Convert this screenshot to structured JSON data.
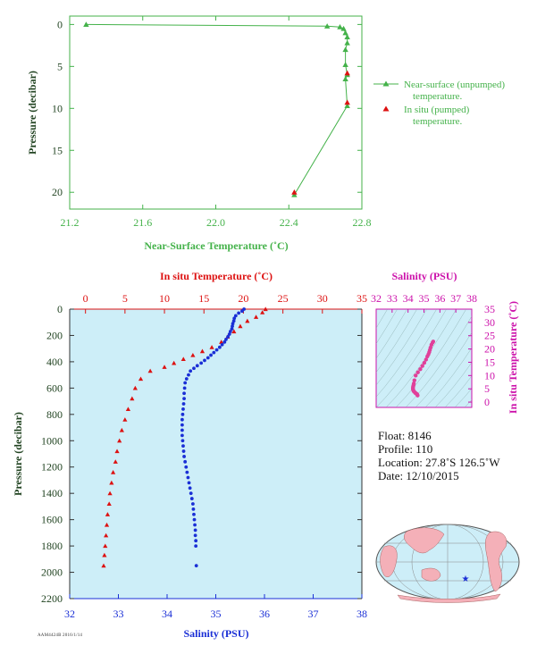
{
  "colors": {
    "green": "#44b24a",
    "red": "#dd1111",
    "blue": "#1a2fd6",
    "magenta": "#cc11aa",
    "dark": "#224422",
    "panel_bg": "#cdeef8",
    "axis": "#333333"
  },
  "top_chart": {
    "xlabel": "Near-Surface Temperature (˚C)",
    "ylabel": "Pressure (decibar)",
    "xlim": [
      21.2,
      22.8
    ],
    "ylim": [
      22,
      -1
    ],
    "xticks": [
      "21.2",
      "21.6",
      "22.0",
      "22.4",
      "22.8"
    ],
    "yticks": [
      "0",
      "5",
      "10",
      "15",
      "20"
    ],
    "legend": {
      "near_surface_line1": "Near-surface (unpumped)",
      "near_surface_line2": "temperature.",
      "in_situ_line1": "In situ (pumped)",
      "in_situ_line2": "temperature."
    }
  },
  "profile_chart": {
    "top_axis_label": "In situ Temperature (˚C)",
    "bottom_axis_label": "Salinity (PSU)",
    "ylabel": "Pressure (decibar)",
    "temp_xlim": [
      -2,
      35
    ],
    "sal_xlim": [
      32,
      38
    ],
    "ylim": [
      2200,
      0
    ],
    "temp_ticks": [
      "0",
      "5",
      "10",
      "15",
      "20",
      "25",
      "30",
      "35"
    ],
    "sal_ticks": [
      "32",
      "33",
      "34",
      "35",
      "36",
      "37",
      "38"
    ],
    "pressure_ticks": [
      "0",
      "200",
      "400",
      "600",
      "800",
      "1000",
      "1200",
      "1400",
      "1600",
      "1800",
      "2000",
      "2200"
    ]
  },
  "ts_chart": {
    "title": "Salinity (PSU)",
    "ylabel": "In situ Temperature (˚C)",
    "xlim": [
      32,
      38
    ],
    "ylim": [
      -2,
      35
    ],
    "xticks": [
      "32",
      "33",
      "34",
      "35",
      "36",
      "37",
      "38"
    ],
    "yticks": [
      "0",
      "5",
      "10",
      "15",
      "20",
      "25",
      "30",
      "35"
    ]
  },
  "info": {
    "float": "Float:  8146",
    "profile": "Profile:  110",
    "location": "Location:  27.8˚S  126.5˚W",
    "date": "Date:  12/10/2015"
  },
  "stamp": "AAM4424B 2016/1/14",
  "chart_data": [
    {
      "type": "scatter",
      "title": "",
      "xlabel": "Near-Surface Temperature (˚C)",
      "ylabel": "Pressure (decibar)",
      "xlim": [
        21.2,
        22.8
      ],
      "ylim": [
        22,
        -1
      ],
      "series": [
        {
          "name": "Near-surface (unpumped) temperature.",
          "x": [
            21.29,
            22.61,
            22.68,
            22.7,
            22.71,
            22.72,
            22.72,
            22.71,
            22.71,
            22.72,
            22.71,
            22.72,
            22.43
          ],
          "y": [
            0.0,
            0.2,
            0.3,
            0.5,
            1.0,
            1.5,
            2.2,
            3.0,
            4.8,
            6.0,
            6.5,
            9.7,
            20.3
          ]
        },
        {
          "name": "In situ (pumped) temperature.",
          "x": [
            22.72,
            22.72,
            22.43
          ],
          "y": [
            5.8,
            9.3,
            20.0
          ]
        }
      ]
    },
    {
      "type": "scatter",
      "title": "",
      "ylabel": "Pressure (decibar)",
      "series": [
        {
          "name": "In situ Temperature (˚C)",
          "axis": "top",
          "x": [
            22.8,
            22.4,
            21.6,
            20.5,
            19.6,
            18.8,
            18.0,
            17.2,
            16.0,
            14.8,
            13.6,
            12.4,
            11.2,
            10.0,
            8.2,
            7.0,
            6.3,
            5.9,
            5.4,
            5.0,
            4.6,
            4.3,
            4.0,
            3.8,
            3.5,
            3.3,
            3.1,
            3.0,
            2.8,
            2.7,
            2.6,
            2.5,
            2.4,
            2.3
          ],
          "y": [
            0,
            25,
            60,
            90,
            130,
            170,
            210,
            250,
            290,
            320,
            350,
            380,
            410,
            440,
            470,
            530,
            600,
            680,
            760,
            840,
            920,
            1000,
            1080,
            1160,
            1240,
            1320,
            1400,
            1480,
            1560,
            1640,
            1720,
            1800,
            1870,
            1950
          ]
        },
        {
          "name": "Salinity (PSU)",
          "axis": "bottom",
          "x": [
            35.58,
            35.54,
            35.47,
            35.41,
            35.38,
            35.37,
            35.35,
            35.34,
            35.33,
            35.3,
            35.28,
            35.25,
            35.21,
            35.18,
            35.13,
            35.08,
            35.02,
            34.96,
            34.9,
            34.84,
            34.77,
            34.7,
            34.62,
            34.55,
            34.48,
            34.44,
            34.4,
            34.37,
            34.36,
            34.35,
            34.35,
            34.34,
            34.33,
            34.32,
            34.31,
            34.31,
            34.31,
            34.31,
            34.32,
            34.33,
            34.34,
            34.35,
            34.37,
            34.39,
            34.41,
            34.43,
            34.45,
            34.47,
            34.49,
            34.51,
            34.53,
            34.54,
            34.55,
            34.56,
            34.57,
            34.58,
            34.58,
            34.59,
            34.59,
            34.6
          ],
          "y": [
            0,
            15,
            30,
            50,
            70,
            90,
            110,
            130,
            150,
            170,
            190,
            210,
            230,
            250,
            270,
            290,
            310,
            330,
            350,
            370,
            390,
            410,
            430,
            450,
            470,
            500,
            530,
            560,
            600,
            640,
            680,
            720,
            760,
            800,
            840,
            880,
            920,
            960,
            1000,
            1040,
            1080,
            1120,
            1160,
            1200,
            1240,
            1280,
            1320,
            1360,
            1400,
            1440,
            1480,
            1520,
            1560,
            1600,
            1640,
            1680,
            1720,
            1760,
            1800,
            1950
          ]
        }
      ]
    },
    {
      "type": "scatter",
      "title": "Salinity (PSU)",
      "xlabel": "Salinity (PSU)",
      "ylabel": "In situ Temperature (˚C)",
      "series": [
        {
          "name": "T-S",
          "x": [
            35.58,
            35.54,
            35.47,
            35.41,
            35.37,
            35.33,
            35.28,
            35.21,
            35.13,
            35.02,
            34.9,
            34.77,
            34.62,
            34.48,
            34.4,
            34.36,
            34.34,
            34.32,
            34.31,
            34.31,
            34.32,
            34.34,
            34.37,
            34.41,
            34.45,
            34.49,
            34.53,
            34.56,
            34.58,
            34.6
          ],
          "y": [
            22.8,
            22.4,
            21.6,
            20.5,
            19.6,
            18.8,
            18.0,
            17.2,
            16.0,
            14.8,
            13.6,
            12.4,
            11.2,
            10.0,
            8.2,
            7.0,
            6.3,
            5.9,
            5.4,
            5.0,
            4.6,
            4.3,
            4.0,
            3.8,
            3.5,
            3.3,
            3.1,
            3.0,
            2.8,
            2.5
          ]
        }
      ]
    }
  ]
}
